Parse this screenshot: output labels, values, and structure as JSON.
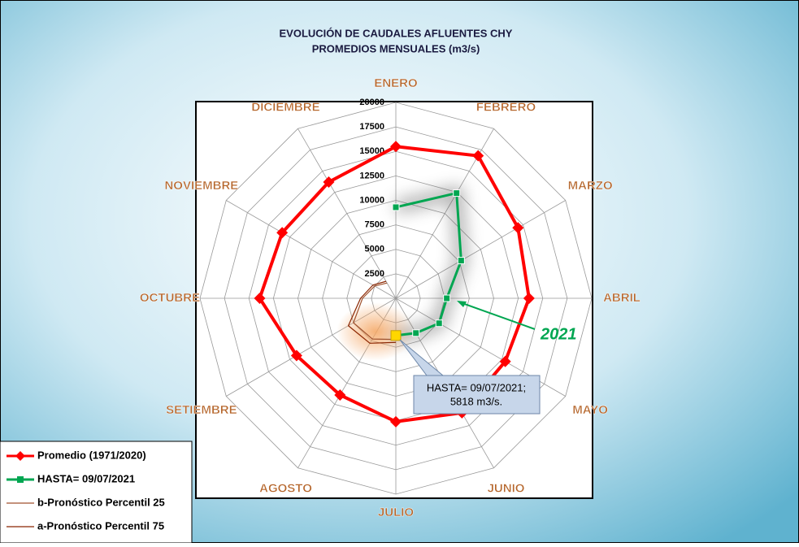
{
  "chart_data": {
    "type": "radar",
    "title": "EVOLUCIÓN DE CAUDALES AFLUENTES CHY",
    "subtitle": "PROMEDIOS MENSUALES (m3/s)",
    "categories": [
      "ENERO",
      "FEBRERO",
      "MARZO",
      "ABRIL",
      "MAYO",
      "JUNIO",
      "JULIO",
      "AGOSTO",
      "SETIEMBRE",
      "OCTUBRE",
      "NOVIEMBRE",
      "DICIEMBRE"
    ],
    "rlim": [
      0,
      20000
    ],
    "rticks": [
      2500,
      5000,
      7500,
      10000,
      12500,
      15000,
      17500,
      20000
    ],
    "grid": true,
    "legend": "bottom-left",
    "series": [
      {
        "name": "Promedio (1971/2020)",
        "color": "#ff0000",
        "marker": "diamond",
        "values": [
          15500,
          16800,
          14400,
          13600,
          12900,
          13500,
          12600,
          11400,
          11700,
          13900,
          13400,
          13700
        ]
      },
      {
        "name": "HASTA= 09/07/2021",
        "color": "#00a651",
        "marker": "square",
        "values": [
          9300,
          12400,
          7700,
          5200,
          5100,
          4100,
          3800,
          null,
          null,
          null,
          null,
          null
        ]
      },
      {
        "name": "b-Pronóstico Percentil 25",
        "color": "#a0522d",
        "marker": "none",
        "values": [
          null,
          null,
          null,
          null,
          null,
          null,
          4200,
          4800,
          5000,
          3400,
          2500,
          1800
        ]
      },
      {
        "name": "a-Pronóstico Percentil 75",
        "color": "#8b2500",
        "marker": "none",
        "values": [
          null,
          null,
          null,
          null,
          null,
          null,
          4500,
          5300,
          5600,
          3600,
          2700,
          2000
        ]
      }
    ],
    "annotations": [
      {
        "text": "2021",
        "color": "#00a651"
      },
      {
        "lines": [
          "HASTA= 09/07/2021;",
          "5818 m3/s."
        ]
      }
    ]
  }
}
